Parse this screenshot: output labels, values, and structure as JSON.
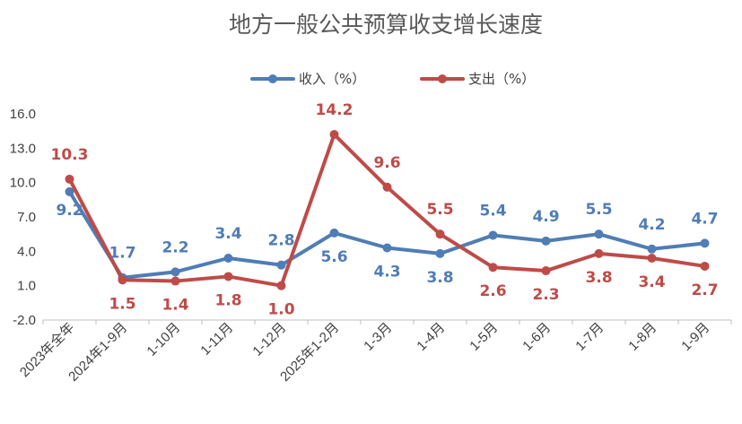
{
  "colors": {
    "income": "#4F7DB5",
    "expense": "#BE4B48",
    "axis": "#BFBFBF",
    "text": "#404040",
    "title": "#595959"
  },
  "chart_data": {
    "type": "line",
    "title": "地方一般公共预算收支增长速度",
    "xlabel": "",
    "ylabel": "",
    "ylim": [
      -2.0,
      16.0
    ],
    "yticks": [
      "-2.0",
      "1.0",
      "4.0",
      "7.0",
      "10.0",
      "13.0",
      "16.0"
    ],
    "grid": false,
    "legend_position": "top-center",
    "categories": [
      "2023年全年",
      "2024年1-9月",
      "1-10月",
      "1-11月",
      "1-12月",
      "2025年1-2月",
      "1-3月",
      "1-4月",
      "1-5月",
      "1-6月",
      "1-7月",
      "1-8月",
      "1-9月"
    ],
    "series": [
      {
        "name": "收入（%）",
        "color": "#4F7DB5",
        "values": [
          9.2,
          1.7,
          2.2,
          3.4,
          2.8,
          5.6,
          4.3,
          3.8,
          5.4,
          4.9,
          5.5,
          4.2,
          4.7
        ],
        "labels": [
          "9.2",
          "1.7",
          "2.2",
          "3.4",
          "2.8",
          "5.6",
          "4.3",
          "3.8",
          "5.4",
          "4.9",
          "5.5",
          "4.2",
          "4.7"
        ]
      },
      {
        "name": "支出（%）",
        "color": "#BE4B48",
        "values": [
          10.3,
          1.5,
          1.4,
          1.8,
          1.0,
          14.2,
          9.6,
          5.5,
          2.6,
          2.3,
          3.8,
          3.4,
          2.7
        ],
        "labels": [
          "10.3",
          "1.5",
          "1.4",
          "1.8",
          "1.0",
          "14.2",
          "9.6",
          "5.5",
          "2.6",
          "2.3",
          "3.8",
          "3.4",
          "2.7"
        ]
      }
    ]
  }
}
